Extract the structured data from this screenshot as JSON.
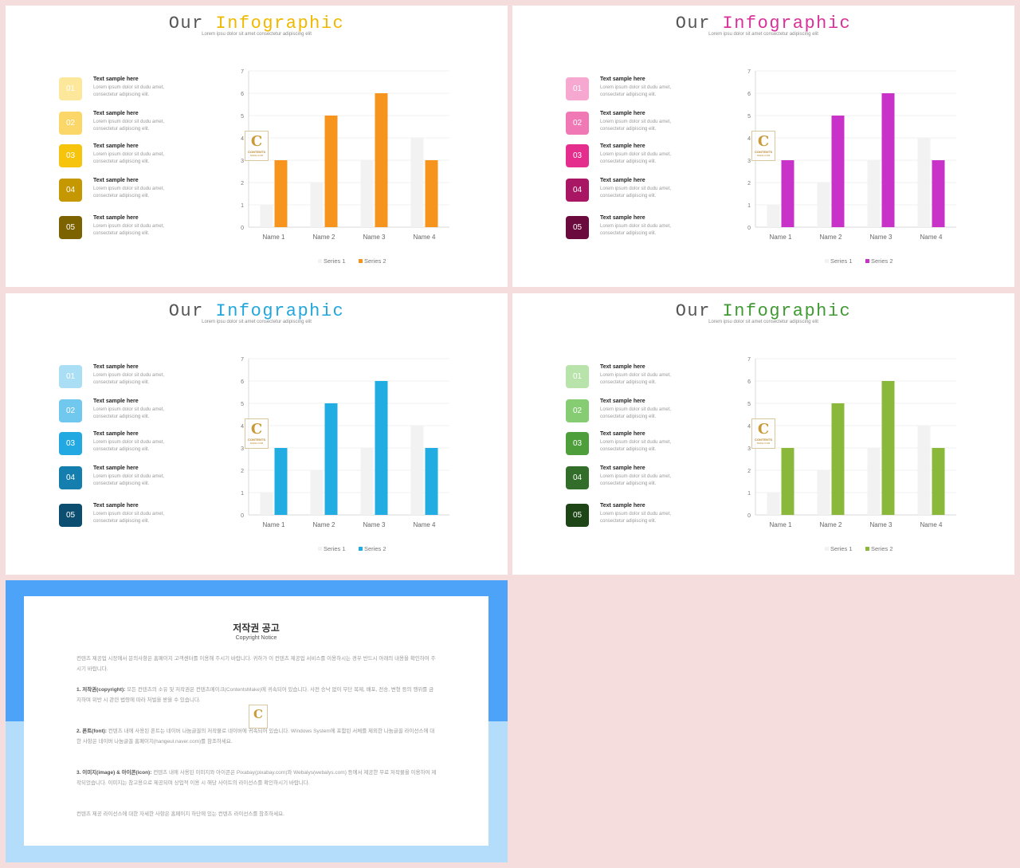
{
  "slides": [
    {
      "title_plain": "Our ",
      "title_accent": "Infographic",
      "accent": "#f1b800",
      "subtitle": "Lorem ipsu dolor sit amet consectetur adipiscing elit",
      "items": [
        {
          "num": "01",
          "heading": "Text sample here",
          "text": "Lorem ipsum dolor sit dudu amet, consectetur adipiscing elit.",
          "color": "#fce79a"
        },
        {
          "num": "02",
          "heading": "Text sample here",
          "text": "Lorem ipsum dolor sit dudu amet, consectetur adipiscing elit.",
          "color": "#fbd669"
        },
        {
          "num": "03",
          "heading": "Text sample here",
          "text": "Lorem ipsum dolor sit dudu amet, consectetur adipiscing elit.",
          "color": "#f6c40c"
        },
        {
          "num": "04",
          "heading": "Text sample here",
          "text": "Lorem ipsum dolor sit dudu amet, consectetur adipiscing elit.",
          "color": "#c59700"
        },
        {
          "num": "05",
          "heading": "Text sample here",
          "text": "Lorem ipsum dolor sit dudu amet, consectetur adipiscing elit.",
          "color": "#7d6200"
        }
      ],
      "logo": {
        "word": "CONTENTS",
        "small": "MAKE.COM"
      }
    },
    {
      "title_plain": "Our ",
      "title_accent": "Infographic",
      "accent": "#d8329a",
      "subtitle": "Lorem ipsu dolor sit amet consectetur adipiscing elit",
      "items": [
        {
          "num": "01",
          "heading": "Text sample here",
          "text": "Lorem ipsum dolor sit dudu amet, consectetur adipiscing elit.",
          "color": "#f6a8d1"
        },
        {
          "num": "02",
          "heading": "Text sample here",
          "text": "Lorem ipsum dolor sit dudu amet, consectetur adipiscing elit.",
          "color": "#f079b5"
        },
        {
          "num": "03",
          "heading": "Text sample here",
          "text": "Lorem ipsum dolor sit dudu amet, consectetur adipiscing elit.",
          "color": "#e42d8d"
        },
        {
          "num": "04",
          "heading": "Text sample here",
          "text": "Lorem ipsum dolor sit dudu amet, consectetur adipiscing elit.",
          "color": "#a91663"
        },
        {
          "num": "05",
          "heading": "Text sample here",
          "text": "Lorem ipsum dolor sit dudu amet, consectetur adipiscing elit.",
          "color": "#6b0a3c"
        }
      ],
      "logo": {
        "word": "CONTENTS",
        "small": "MAKE.COM"
      }
    },
    {
      "title_plain": "Our ",
      "title_accent": "Infographic",
      "accent": "#22a7dc",
      "subtitle": "Lorem ipsu dolor sit amet consectetur adipiscing elit",
      "items": [
        {
          "num": "01",
          "heading": "Text sample here",
          "text": "Lorem ipsum dolor sit dudu amet, consectetur adipiscing elit.",
          "color": "#a9def5"
        },
        {
          "num": "02",
          "heading": "Text sample here",
          "text": "Lorem ipsum dolor sit dudu amet, consectetur adipiscing elit.",
          "color": "#71c8ee"
        },
        {
          "num": "03",
          "heading": "Text sample here",
          "text": "Lorem ipsum dolor sit dudu amet, consectetur adipiscing elit.",
          "color": "#22a9e2"
        },
        {
          "num": "04",
          "heading": "Text sample here",
          "text": "Lorem ipsum dolor sit dudu amet, consectetur adipiscing elit.",
          "color": "#147fae"
        },
        {
          "num": "05",
          "heading": "Text sample here",
          "text": "Lorem ipsum dolor sit dudu amet, consectetur adipiscing elit.",
          "color": "#0b4e6f"
        }
      ],
      "logo": {
        "word": "CONTENTS",
        "small": "MAKE.COM"
      }
    },
    {
      "title_plain": "Our ",
      "title_accent": "Infographic",
      "accent": "#3f9a32",
      "subtitle": "Lorem ipsu dolor sit amet consectetur adipiscing elit",
      "items": [
        {
          "num": "01",
          "heading": "Text sample here",
          "text": "Lorem ipsum dolor sit dudu amet, consectetur adipiscing elit.",
          "color": "#b8e3aa"
        },
        {
          "num": "02",
          "heading": "Text sample here",
          "text": "Lorem ipsum dolor sit dudu amet, consectetur adipiscing elit.",
          "color": "#86cc73"
        },
        {
          "num": "03",
          "heading": "Text sample here",
          "text": "Lorem ipsum dolor sit dudu amet, consectetur adipiscing elit.",
          "color": "#4e9e3c"
        },
        {
          "num": "04",
          "heading": "Text sample here",
          "text": "Lorem ipsum dolor sit dudu amet, consectetur adipiscing elit.",
          "color": "#326e29"
        },
        {
          "num": "05",
          "heading": "Text sample here",
          "text": "Lorem ipsum dolor sit dudu amet, consectetur adipiscing elit.",
          "color": "#1d4516"
        }
      ],
      "logo": {
        "word": "CONTENTS",
        "small": "MAKE.COM"
      }
    }
  ],
  "chart_data": [
    {
      "type": "bar",
      "categories": [
        "Name 1",
        "Name 2",
        "Name 3",
        "Name 4"
      ],
      "series": [
        {
          "name": "Series 1",
          "values": [
            1,
            2,
            3,
            4
          ],
          "color": "#f2f2f2"
        },
        {
          "name": "Series 2",
          "values": [
            3,
            5,
            6,
            3
          ],
          "color": "#f7941d"
        }
      ],
      "ylim": [
        0,
        7
      ],
      "yticks": [
        "0",
        "1",
        "2",
        "3",
        "4",
        "5",
        "6",
        "7"
      ],
      "legend": "bottom"
    },
    {
      "type": "bar",
      "categories": [
        "Name 1",
        "Name 2",
        "Name 3",
        "Name 4"
      ],
      "series": [
        {
          "name": "Series 1",
          "values": [
            1,
            2,
            3,
            4
          ],
          "color": "#f2f2f2"
        },
        {
          "name": "Series 2",
          "values": [
            3,
            5,
            6,
            3
          ],
          "color": "#c832c8"
        }
      ],
      "ylim": [
        0,
        7
      ],
      "yticks": [
        "0",
        "1",
        "2",
        "3",
        "4",
        "5",
        "6",
        "7"
      ],
      "legend": "bottom"
    },
    {
      "type": "bar",
      "categories": [
        "Name 1",
        "Name 2",
        "Name 3",
        "Name 4"
      ],
      "series": [
        {
          "name": "Series 1",
          "values": [
            1,
            2,
            3,
            4
          ],
          "color": "#f2f2f2"
        },
        {
          "name": "Series 2",
          "values": [
            3,
            5,
            6,
            3
          ],
          "color": "#22ade2"
        }
      ],
      "ylim": [
        0,
        7
      ],
      "yticks": [
        "0",
        "1",
        "2",
        "3",
        "4",
        "5",
        "6",
        "7"
      ],
      "legend": "bottom"
    },
    {
      "type": "bar",
      "categories": [
        "Name 1",
        "Name 2",
        "Name 3",
        "Name 4"
      ],
      "series": [
        {
          "name": "Series 1",
          "values": [
            1,
            2,
            3,
            4
          ],
          "color": "#f2f2f2"
        },
        {
          "name": "Series 2",
          "values": [
            3,
            5,
            6,
            3
          ],
          "color": "#8ab83a"
        }
      ],
      "ylim": [
        0,
        7
      ],
      "yticks": [
        "0",
        "1",
        "2",
        "3",
        "4",
        "5",
        "6",
        "7"
      ],
      "legend": "bottom"
    }
  ],
  "copyright": {
    "title": "저작권 공고",
    "subtitle": "Copyright Notice",
    "intro": "컨텐츠 제공업 시장에서 문의사항은 홈페이지 고객센터를 이용해 주시기 바랍니다. 귀하가 이 컨텐츠 제공업 서비스를 이용하시는 경우 반드시 아래의 내용을 확인하여 주시기 바랍니다.",
    "p1_head": "1. 저작권(copyright):",
    "p1_body": "모든 컨텐츠의 소유 및 저작권은 컨텐츠메이크(ContentsMake)에 귀속되어 있습니다. 사전 승낙 없이 무단 복제, 배포, 전송, 변형 등의 행위를 금지하며 위반 시 관련 법령에 따라 처벌을 받을 수 있습니다.",
    "p2_head": "2. 폰트(font):",
    "p2_body": "컨텐츠 내에 사용된 폰트는 네이버 나눔글꼴의 저작물로 네이버에 귀속되어 있습니다. Windows System에 포함된 서체를 제외한 나눔글꼴 라이선스에 대한 사항은 네이버 나눔글꼴 홈페이지(hangeul.naver.com)를 참조하세요.",
    "p3_head": "3. 이미지(image) & 아이콘(icon):",
    "p3_body": "컨텐츠 내에 사용된 이미지와 아이콘은 Pixabay(pixabay.com)와 Webalys(webalys.com) 등에서 제공한 무료 저작물을 이용하여 제작되었습니다. 이미지는 참고용으로 제공되며 상업적 이용 시 해당 사이트의 라이선스를 확인하시기 바랍니다.",
    "outro": "컨텐츠 제공 라이선스에 대한 자세한 사항은 홈페이지 하단에 있는 컨텐츠 라이선스를 참조하세요."
  }
}
